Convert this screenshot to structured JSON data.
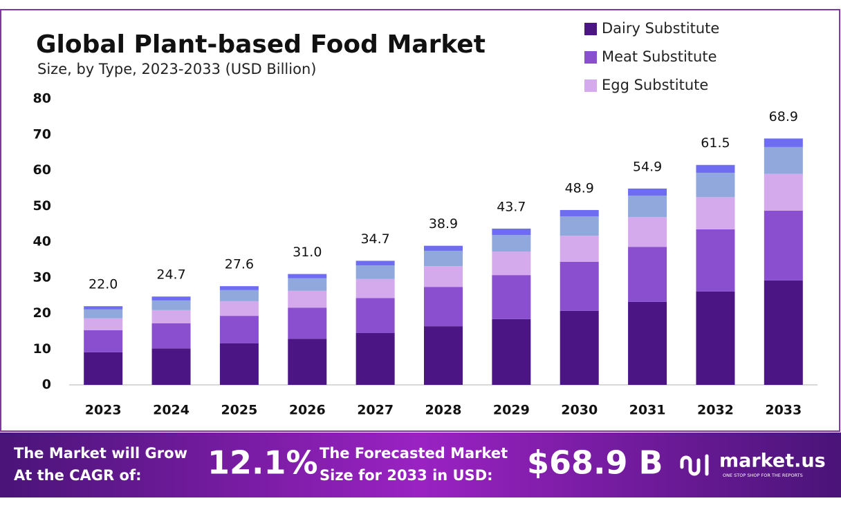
{
  "chart_data": {
    "type": "stacked_bar",
    "title": "Global Plant-based Food Market",
    "subtitle": "Size, by Type, 2023-2033 (USD Billion)",
    "categories": [
      "2023",
      "2024",
      "2025",
      "2026",
      "2027",
      "2028",
      "2029",
      "2030",
      "2031",
      "2032",
      "2033"
    ],
    "series": [
      {
        "name": "Dairy Substitute",
        "color": "#4b1584",
        "values": [
          9.1,
          10.2,
          11.6,
          12.9,
          14.5,
          16.4,
          18.4,
          20.7,
          23.2,
          26.1,
          29.2
        ]
      },
      {
        "name": "Meat Substitute",
        "color": "#8a4fcf",
        "values": [
          6.2,
          7.0,
          7.7,
          8.7,
          9.8,
          11.0,
          12.3,
          13.7,
          15.4,
          17.4,
          19.5
        ]
      },
      {
        "name": "Egg Substitute",
        "color": "#d4aaec",
        "values": [
          3.3,
          3.7,
          4.1,
          4.7,
          5.3,
          5.8,
          6.6,
          7.3,
          8.3,
          9.0,
          10.3
        ]
      },
      {
        "color": "#91a8dc",
        "values": [
          2.5,
          2.7,
          3.1,
          3.5,
          3.8,
          4.3,
          4.6,
          5.4,
          6.0,
          6.8,
          7.5
        ]
      },
      {
        "color": "#6e6cf0",
        "values": [
          0.9,
          1.1,
          1.1,
          1.2,
          1.3,
          1.4,
          1.8,
          1.8,
          2.0,
          2.2,
          2.4
        ]
      }
    ],
    "totals": [
      22.0,
      24.7,
      27.6,
      31.0,
      34.7,
      38.9,
      43.7,
      48.9,
      54.9,
      61.5,
      68.9
    ],
    "total_labels": [
      "22.0",
      "24.7",
      "27.6",
      "31.0",
      "34.7",
      "38.9",
      "43.7",
      "48.9",
      "54.9",
      "61.5",
      "68.9"
    ],
    "ylim": [
      0,
      80
    ],
    "yticks": [
      0,
      10,
      20,
      30,
      40,
      50,
      60,
      70,
      80
    ],
    "grid": false,
    "legend": "top-right"
  },
  "footer": {
    "cagr_line1": "The Market will Grow",
    "cagr_line2": "At the CAGR of:",
    "cagr": "12.1%",
    "forecast_line1": "The Forecasted Market",
    "forecast_line2": "Size for 2033 in USD:",
    "forecast": "$68.9 B",
    "brand": "market.us",
    "tagline": "ONE STOP SHOP FOR THE REPORTS"
  }
}
